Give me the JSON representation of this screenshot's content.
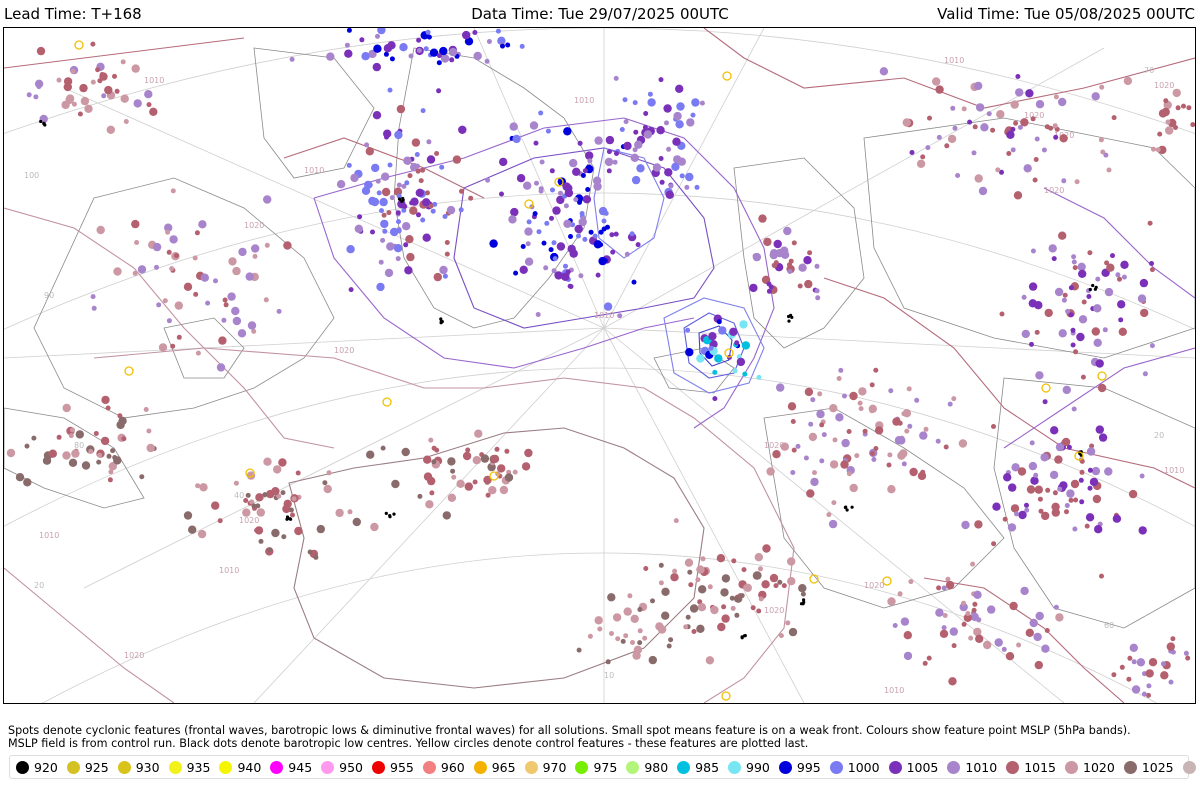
{
  "header": {
    "lead_time": "Lead Time: T+168",
    "data_time": "Data Time: Tue 29/07/2025 00UTC",
    "valid_time": "Valid Time: Tue 05/08/2025 00UTC"
  },
  "caption": {
    "line1": "Spots denote cyclonic features (frontal waves, barotropic lows & diminutive frontal waves) for all solutions. Small spot means feature is on a weak front. Colours show feature point MSLP (5hPa bands).",
    "line2": "MSLP field is from control run. Black dots denote barotropic low centres. Yellow circles denote control features - these features are plotted last."
  },
  "legend": [
    {
      "label": "920",
      "color": "#000000"
    },
    {
      "label": "925",
      "color": "#d4c224"
    },
    {
      "label": "930",
      "color": "#d9c21a"
    },
    {
      "label": "935",
      "color": "#f2f21a"
    },
    {
      "label": "940",
      "color": "#f5f500"
    },
    {
      "label": "945",
      "color": "#ff00ff"
    },
    {
      "label": "950",
      "color": "#ff99ee"
    },
    {
      "label": "955",
      "color": "#ee0000"
    },
    {
      "label": "960",
      "color": "#f28080"
    },
    {
      "label": "965",
      "color": "#f5b000"
    },
    {
      "label": "970",
      "color": "#f0c870"
    },
    {
      "label": "975",
      "color": "#77ee00"
    },
    {
      "label": "980",
      "color": "#b3f57a"
    },
    {
      "label": "985",
      "color": "#00c0e0"
    },
    {
      "label": "990",
      "color": "#77e6f2"
    },
    {
      "label": "995",
      "color": "#0000dd"
    },
    {
      "label": "1000",
      "color": "#7a7af2"
    },
    {
      "label": "1005",
      "color": "#7a30b8"
    },
    {
      "label": "1010",
      "color": "#a884cc"
    },
    {
      "label": "1015",
      "color": "#b5606e"
    },
    {
      "label": "1020",
      "color": "#cc98a4"
    },
    {
      "label": "1025",
      "color": "#8a6b6b"
    },
    {
      "label": "1030",
      "color": "#c8b4b4"
    },
    {
      "label": "",
      "color": "#cce0e6"
    }
  ],
  "isobar_labels": [
    "1010",
    "1020",
    "1020",
    "1010",
    "1020",
    "1010",
    "1010",
    "1020",
    "1010",
    "1020",
    "1020",
    "1010",
    "1010",
    "1020",
    "1010",
    "1010",
    "1020",
    "1020",
    "1020",
    "1020"
  ],
  "graticule_labels": [
    "100",
    "90",
    "80",
    "70",
    "60",
    "40",
    "20",
    "20",
    "10"
  ]
}
